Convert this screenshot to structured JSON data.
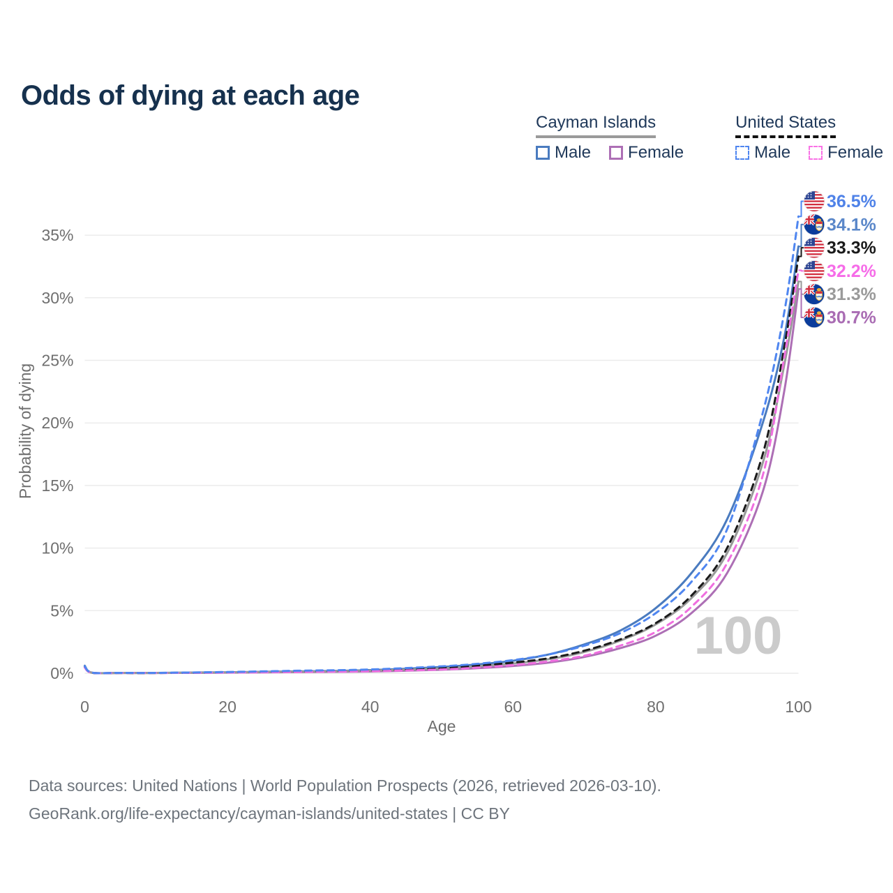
{
  "header": {
    "title": "Odds of dying at each age"
  },
  "legend": {
    "groups": [
      {
        "label": "Cayman Islands",
        "underline_style": "solid",
        "underline_color": "#9a9a9a",
        "items": [
          {
            "label": "Male",
            "color": "#4a7bbf",
            "dash": false
          },
          {
            "label": "Female",
            "color": "#ad6fb5",
            "dash": false
          }
        ]
      },
      {
        "label": "United States",
        "underline_style": "dashed",
        "underline_color": "#111111",
        "items": [
          {
            "label": "Male",
            "color": "#4f86f0",
            "dash": true
          },
          {
            "label": "Female",
            "color": "#f973e6",
            "dash": true
          }
        ]
      }
    ]
  },
  "chart_data": {
    "type": "line",
    "title": "Odds of dying at each age",
    "xlabel": "Age",
    "ylabel": "Probability of dying",
    "xlim": [
      0,
      100
    ],
    "ylim": [
      0,
      37
    ],
    "x_ticks": [
      0,
      20,
      40,
      60,
      80,
      100
    ],
    "y_ticks": [
      0,
      5,
      10,
      15,
      20,
      25,
      30,
      35
    ],
    "y_tick_suffix": "%",
    "grid": "horizontal",
    "age_watermark": "100",
    "x": [
      0,
      1,
      5,
      10,
      20,
      30,
      40,
      50,
      55,
      60,
      65,
      70,
      75,
      80,
      85,
      90,
      95,
      98,
      100
    ],
    "series": [
      {
        "name": "Cayman Islands — Male",
        "flag": "cayman",
        "color": "#4a7bbf",
        "dash": false,
        "label_color": "#5a87c9",
        "end_label": "34.1%",
        "end_value": 34.1,
        "values": [
          0.6,
          0.05,
          0.03,
          0.03,
          0.08,
          0.15,
          0.25,
          0.5,
          0.7,
          1.0,
          1.5,
          2.3,
          3.4,
          5.2,
          8.0,
          12.3,
          20.0,
          26.8,
          34.1
        ]
      },
      {
        "name": "Cayman Islands — Female",
        "flag": "cayman",
        "color": "#ad6fb5",
        "dash": false,
        "label_color": "#a96cb3",
        "end_label": "30.7%",
        "end_value": 30.7,
        "values": [
          0.5,
          0.04,
          0.02,
          0.02,
          0.05,
          0.09,
          0.14,
          0.28,
          0.4,
          0.58,
          0.85,
          1.3,
          2.0,
          3.0,
          4.8,
          8.0,
          14.5,
          22.5,
          30.7
        ]
      },
      {
        "name": "Cayman Islands — Both sexes",
        "flag": "cayman",
        "color": "#999999",
        "dash": false,
        "label_color": "#9a9a9a",
        "end_label": "31.3%",
        "end_value": 31.3,
        "values": [
          0.55,
          0.04,
          0.02,
          0.02,
          0.06,
          0.12,
          0.2,
          0.38,
          0.55,
          0.78,
          1.12,
          1.7,
          2.6,
          3.9,
          6.0,
          9.6,
          16.8,
          24.6,
          31.3
        ]
      },
      {
        "name": "United States — Both sexes",
        "flag": "us",
        "color": "#1a1a1a",
        "dash": true,
        "label_color": "#1a1a1a",
        "end_label": "33.3%",
        "end_value": 33.3,
        "values": [
          0.5,
          0.04,
          0.02,
          0.02,
          0.07,
          0.15,
          0.22,
          0.42,
          0.6,
          0.85,
          1.2,
          1.8,
          2.7,
          4.0,
          6.2,
          10.0,
          17.5,
          26.0,
          33.3
        ]
      },
      {
        "name": "United States — Female",
        "flag": "us",
        "color": "#f06ee0",
        "dash": true,
        "label_color": "#f66ce8",
        "end_label": "32.2%",
        "end_value": 32.2,
        "values": [
          0.45,
          0.04,
          0.02,
          0.02,
          0.05,
          0.1,
          0.16,
          0.3,
          0.45,
          0.65,
          0.95,
          1.4,
          2.2,
          3.3,
          5.3,
          8.8,
          15.8,
          25.2,
          32.2
        ]
      },
      {
        "name": "United States — Male",
        "flag": "us",
        "color": "#4f86f0",
        "dash": true,
        "label_color": "#4f82e8",
        "end_label": "36.5%",
        "end_value": 36.5,
        "values": [
          0.55,
          0.05,
          0.03,
          0.03,
          0.1,
          0.2,
          0.3,
          0.55,
          0.75,
          1.05,
          1.5,
          2.2,
          3.2,
          4.8,
          7.3,
          11.5,
          20.8,
          28.8,
          36.5
        ]
      }
    ]
  },
  "footer": {
    "line1": "Data sources: United Nations | World Population Prospects (2026, retrieved 2026-03-10).",
    "line2": "GeoRank.org/life-expectancy/cayman-islands/united-states | CC BY"
  }
}
